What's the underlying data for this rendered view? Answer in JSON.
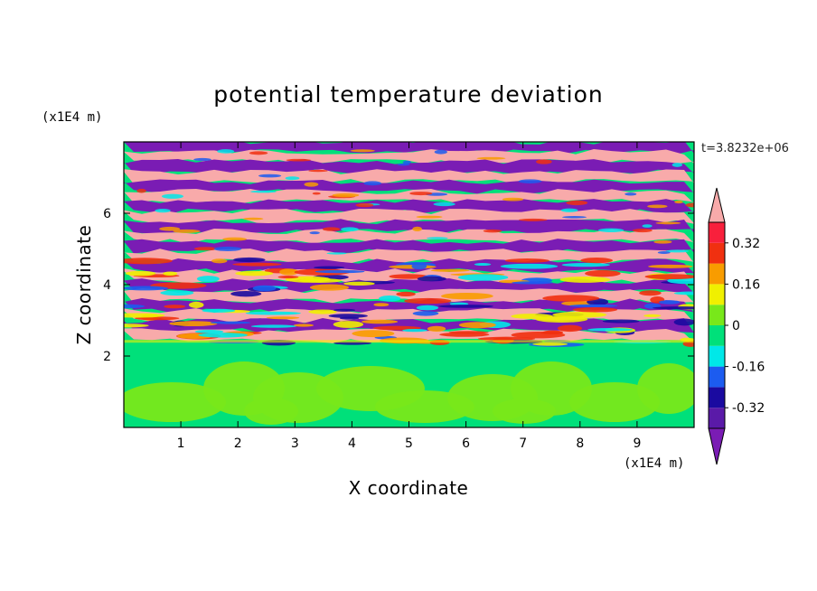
{
  "chart_data": {
    "type": "heatmap",
    "title": "potential temperature deviation",
    "xlabel": "X coordinate",
    "ylabel": "Z coordinate",
    "x_unit": "(x1E4 m)",
    "y_unit": "(x1E4 m)",
    "time_label": "t=3.8232e+06",
    "xlim": [
      0,
      10
    ],
    "ylim": [
      0,
      8
    ],
    "x_ticks": [
      1,
      2,
      3,
      4,
      5,
      6,
      7,
      8,
      9
    ],
    "y_ticks": [
      2,
      4,
      6
    ],
    "colorbar": {
      "levels": [
        -0.4,
        -0.32,
        -0.24,
        -0.16,
        -0.08,
        0,
        0.08,
        0.16,
        0.24,
        0.32,
        0.4
      ],
      "colors": [
        "#5a1aa8",
        "#1a0aa0",
        "#1c5cf0",
        "#00e8e8",
        "#00e07a",
        "#78e81a",
        "#f0f000",
        "#f89c00",
        "#f03010",
        "#f8203c"
      ],
      "under_color": "#7a1cb4",
      "over_color": "#f8aaaa",
      "labels": [
        "0.32",
        "0.16",
        "0",
        "-0.16",
        "-0.32"
      ],
      "label_values": [
        0.32,
        0.16,
        0,
        -0.16,
        -0.32
      ]
    },
    "field_colors": {
      "background_lower": "#00e07a",
      "pink": "#f8aaaa",
      "purple": "#7a1cb4"
    }
  }
}
